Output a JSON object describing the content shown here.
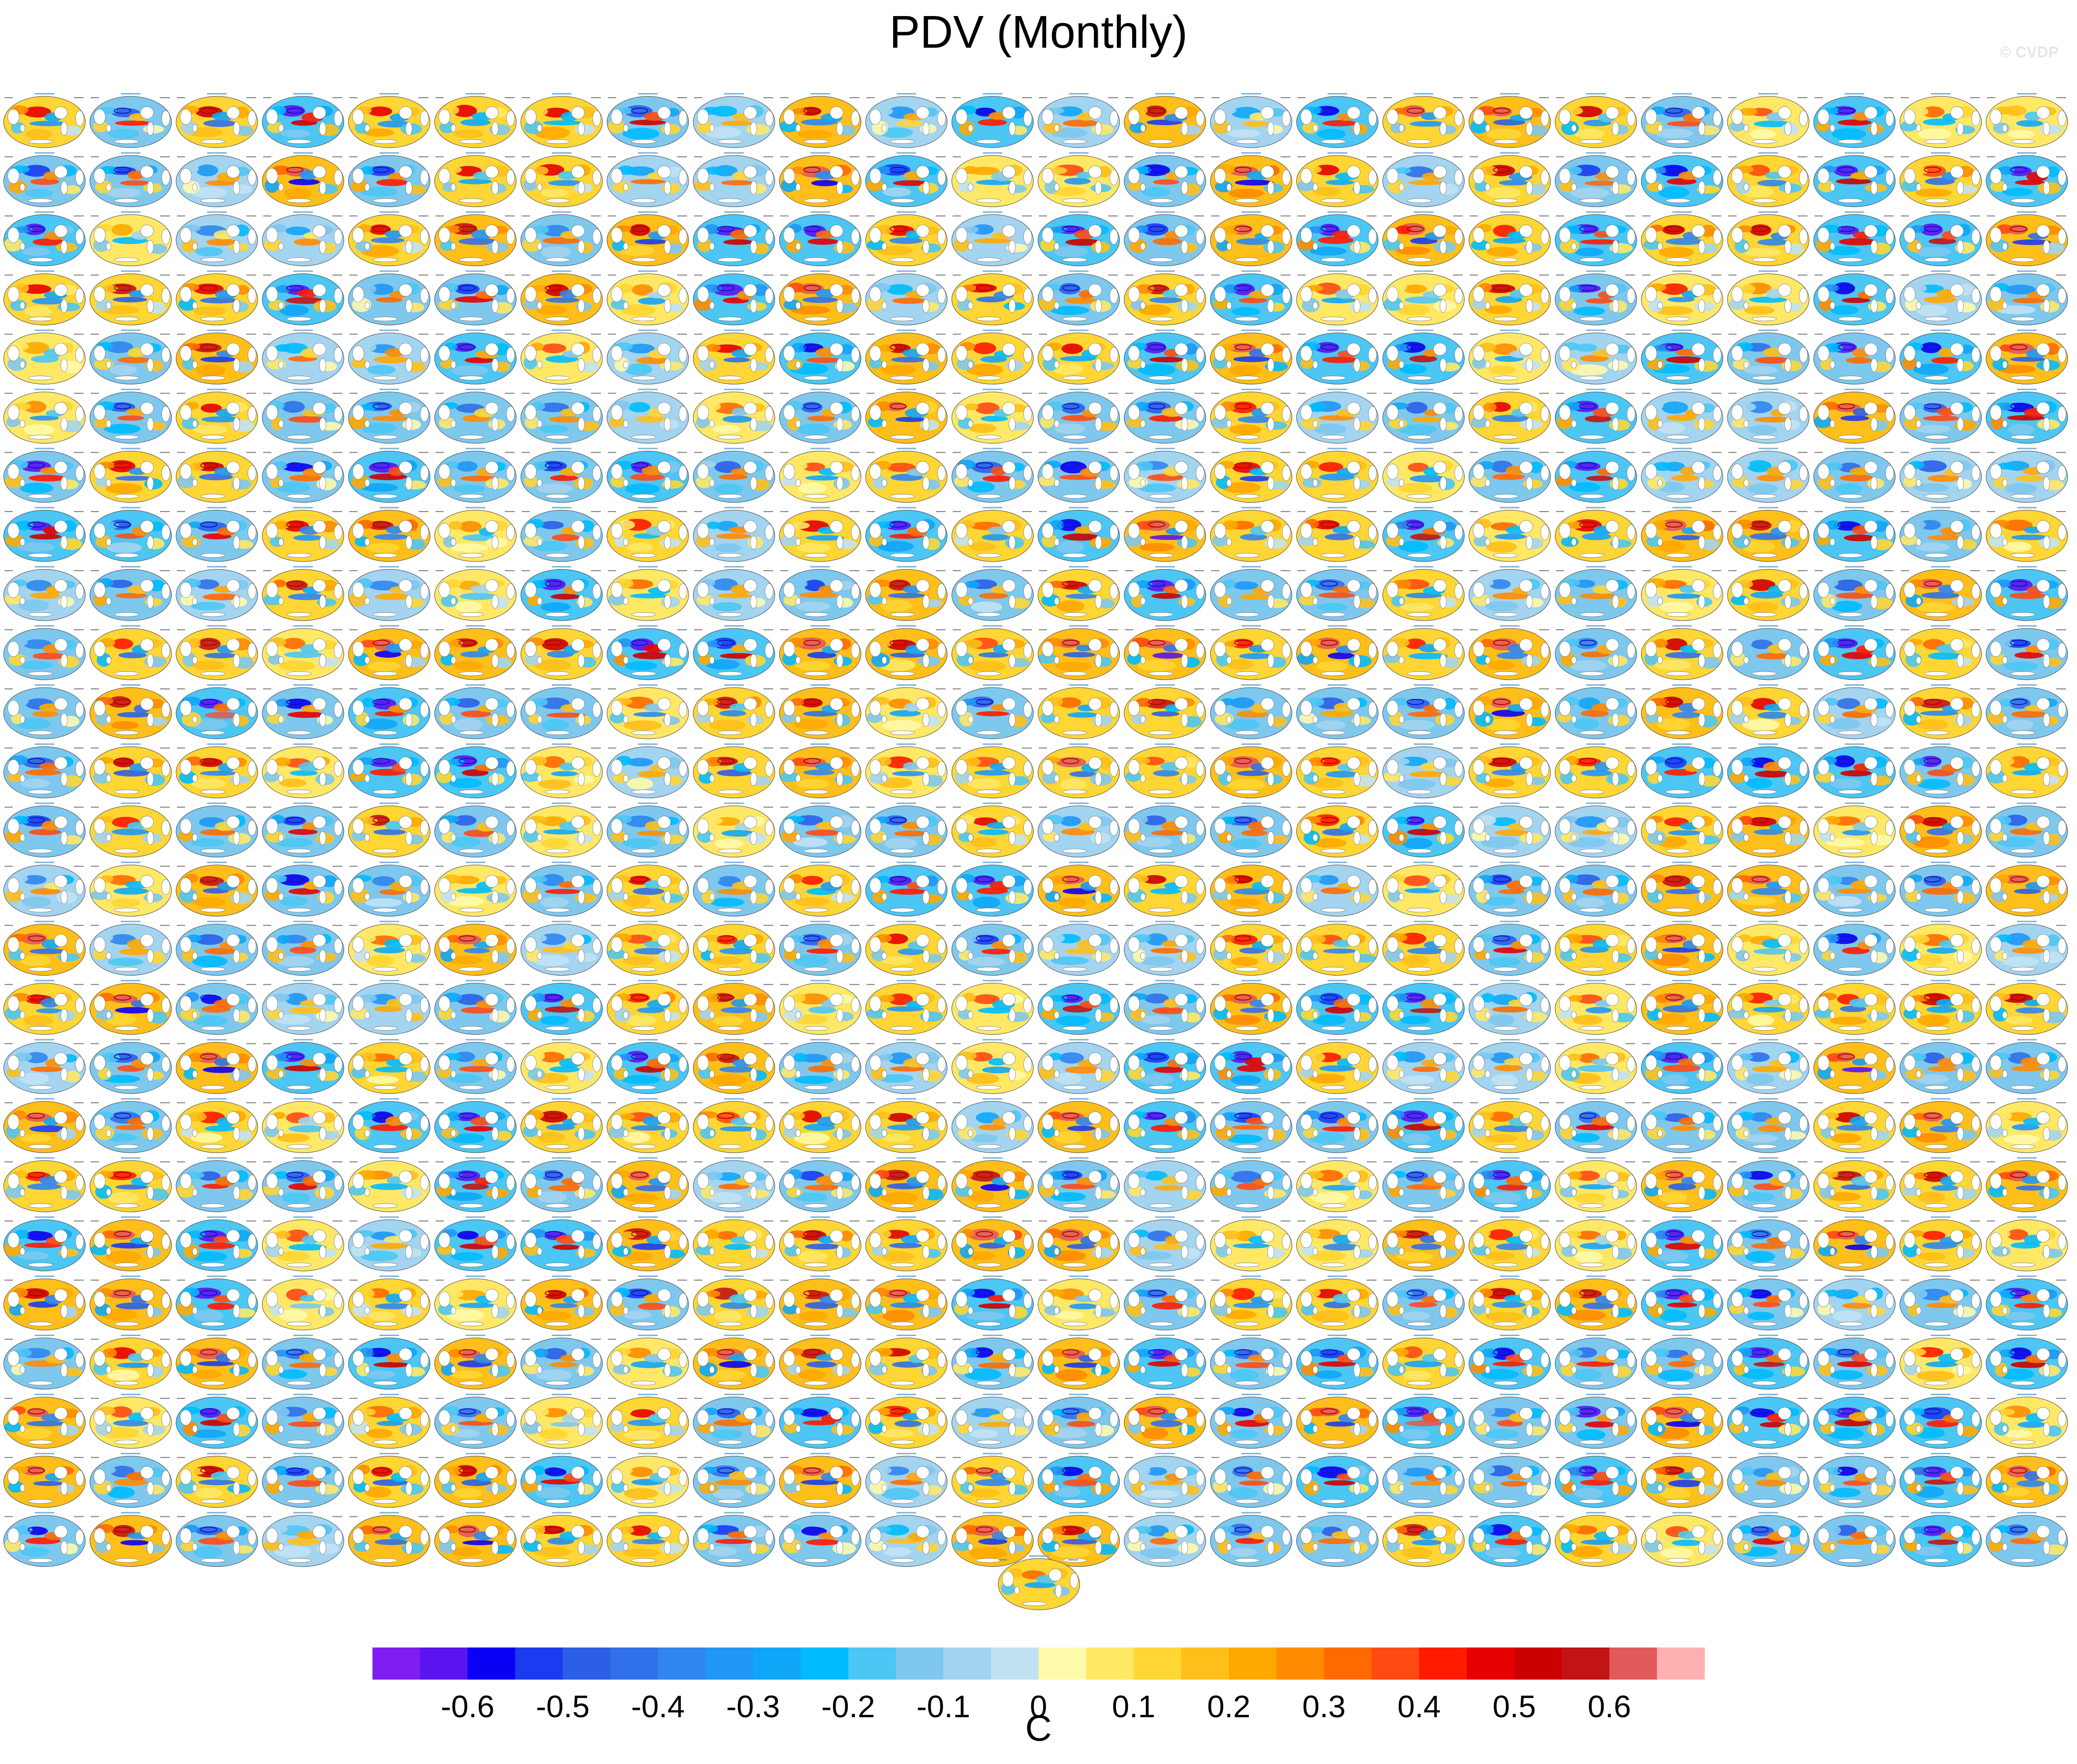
{
  "title": "PDV (Monthly)",
  "watermark": "© CVDP",
  "chart_data": {
    "type": "heatmap",
    "description_kind": "grid of ensemble-member SST regression maps",
    "grid": {
      "rows": 25,
      "columns": 24,
      "extra_panels": 1
    },
    "colorbar": {
      "unit": "C",
      "tick_labels": [
        "-0.6",
        "-0.5",
        "-0.4",
        "-0.3",
        "-0.2",
        "-0.1",
        "0",
        "0.1",
        "0.2",
        "0.3",
        "0.4",
        "0.5",
        "0.6"
      ],
      "levels": [
        -0.65,
        -0.6,
        -0.55,
        -0.5,
        -0.45,
        -0.4,
        -0.35,
        -0.3,
        -0.25,
        -0.2,
        -0.15,
        -0.1,
        -0.05,
        0,
        0.05,
        0.1,
        0.15,
        0.2,
        0.25,
        0.3,
        0.35,
        0.4,
        0.45,
        0.5,
        0.55,
        0.6,
        0.65
      ],
      "colors": [
        "#7f1ef0",
        "#5a14f0",
        "#0a00f5",
        "#1a3cf0",
        "#2b5fe6",
        "#3070e8",
        "#2f86ee",
        "#1f97f5",
        "#10a6f8",
        "#00bbff",
        "#4cc6f4",
        "#7ec8ee",
        "#a3d4f0",
        "#c2e2f4",
        "#fffaaa",
        "#ffe866",
        "#ffd633",
        "#ffbf1a",
        "#ffa800",
        "#ff8c00",
        "#ff6a00",
        "#ff4a14",
        "#ff1a00",
        "#e60000",
        "#cc0000",
        "#c21414",
        "#e05a5a",
        "#ffb0b0"
      ]
    }
  }
}
